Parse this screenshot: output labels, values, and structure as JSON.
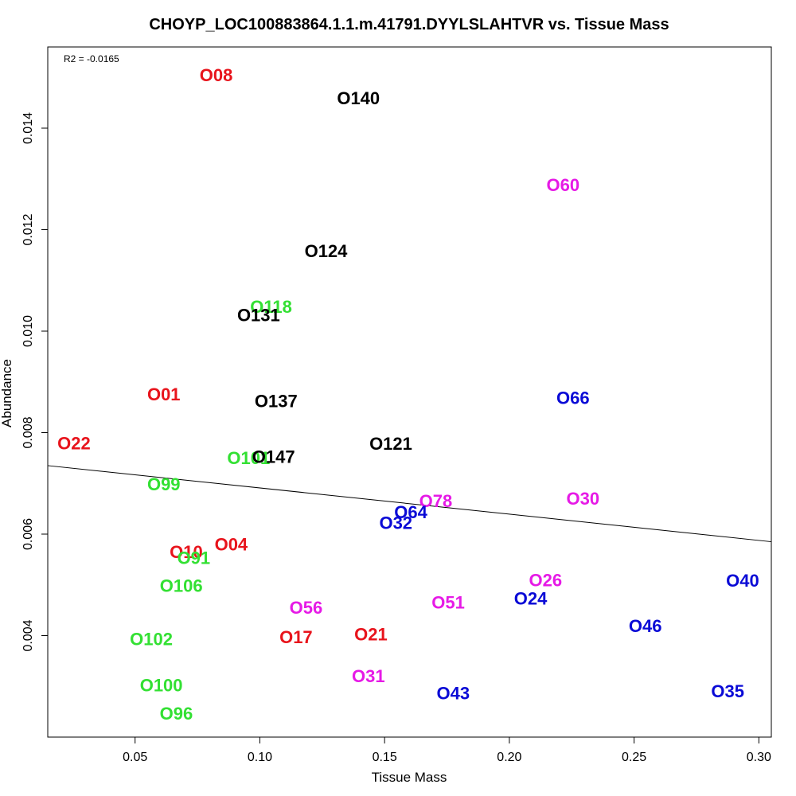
{
  "chart_data": {
    "type": "scatter",
    "title": "CHOYP_LOC100883864.1.1.m.41791.DYYLSLAHTVR vs. Tissue Mass",
    "xlabel": "Tissue Mass",
    "ylabel": "Abundance",
    "xlim": [
      0.015,
      0.305
    ],
    "ylim": [
      0.002,
      0.0156
    ],
    "x_ticks": [
      0.05,
      0.1,
      0.15,
      0.2,
      0.25,
      0.3
    ],
    "x_tick_labels": [
      "0.05",
      "0.10",
      "0.15",
      "0.20",
      "0.25",
      "0.30"
    ],
    "y_ticks": [
      0.004,
      0.006,
      0.008,
      0.01,
      0.012,
      0.014
    ],
    "y_tick_labels": [
      "0.004",
      "0.006",
      "0.008",
      "0.010",
      "0.012",
      "0.014"
    ],
    "annotation": "R2 = -0.0165",
    "fit_line": {
      "x": [
        0.015,
        0.305
      ],
      "y": [
        0.00735,
        0.00585
      ]
    },
    "colors": {
      "red": "#e8141c",
      "black": "#000000",
      "green": "#33e033",
      "blue": "#0a0ad6",
      "magenta": "#e61ae6"
    },
    "points": [
      {
        "label": "O08",
        "x": 0.0825,
        "y": 0.01504,
        "color": "red"
      },
      {
        "label": "O140",
        "x": 0.1395,
        "y": 0.01459,
        "color": "black"
      },
      {
        "label": "O60",
        "x": 0.2215,
        "y": 0.01288,
        "color": "magenta"
      },
      {
        "label": "O124",
        "x": 0.1265,
        "y": 0.01158,
        "color": "black"
      },
      {
        "label": "O118",
        "x": 0.1045,
        "y": 0.01048,
        "color": "green"
      },
      {
        "label": "O131",
        "x": 0.0995,
        "y": 0.01031,
        "color": "black"
      },
      {
        "label": "O01",
        "x": 0.0615,
        "y": 0.00875,
        "color": "red"
      },
      {
        "label": "O137",
        "x": 0.1065,
        "y": 0.00862,
        "color": "black"
      },
      {
        "label": "O66",
        "x": 0.2255,
        "y": 0.00868,
        "color": "blue"
      },
      {
        "label": "O22",
        "x": 0.0255,
        "y": 0.00779,
        "color": "red"
      },
      {
        "label": "O121",
        "x": 0.1525,
        "y": 0.00778,
        "color": "black"
      },
      {
        "label": "O101",
        "x": 0.0955,
        "y": 0.0075,
        "color": "green"
      },
      {
        "label": "O147",
        "x": 0.1055,
        "y": 0.00752,
        "color": "black"
      },
      {
        "label": "O99",
        "x": 0.0615,
        "y": 0.00698,
        "color": "green"
      },
      {
        "label": "O78",
        "x": 0.1705,
        "y": 0.00665,
        "color": "magenta"
      },
      {
        "label": "O30",
        "x": 0.2295,
        "y": 0.0067,
        "color": "magenta"
      },
      {
        "label": "O64",
        "x": 0.1605,
        "y": 0.00643,
        "color": "blue"
      },
      {
        "label": "O32",
        "x": 0.1545,
        "y": 0.00622,
        "color": "blue"
      },
      {
        "label": "O04",
        "x": 0.0885,
        "y": 0.0058,
        "color": "red"
      },
      {
        "label": "O10",
        "x": 0.0705,
        "y": 0.00565,
        "color": "red"
      },
      {
        "label": "O91",
        "x": 0.0735,
        "y": 0.00553,
        "color": "green"
      },
      {
        "label": "O26",
        "x": 0.2145,
        "y": 0.00509,
        "color": "magenta"
      },
      {
        "label": "O40",
        "x": 0.2935,
        "y": 0.00508,
        "color": "blue"
      },
      {
        "label": "O106",
        "x": 0.0685,
        "y": 0.00498,
        "color": "green"
      },
      {
        "label": "O24",
        "x": 0.2085,
        "y": 0.00473,
        "color": "blue"
      },
      {
        "label": "O51",
        "x": 0.1755,
        "y": 0.00465,
        "color": "magenta"
      },
      {
        "label": "O56",
        "x": 0.1185,
        "y": 0.00455,
        "color": "magenta"
      },
      {
        "label": "O46",
        "x": 0.2545,
        "y": 0.00419,
        "color": "blue"
      },
      {
        "label": "O21",
        "x": 0.1445,
        "y": 0.00402,
        "color": "red"
      },
      {
        "label": "O17",
        "x": 0.1145,
        "y": 0.00397,
        "color": "red"
      },
      {
        "label": "O102",
        "x": 0.0565,
        "y": 0.00393,
        "color": "green"
      },
      {
        "label": "O31",
        "x": 0.1435,
        "y": 0.0032,
        "color": "magenta"
      },
      {
        "label": "O100",
        "x": 0.0605,
        "y": 0.00302,
        "color": "green"
      },
      {
        "label": "O35",
        "x": 0.2875,
        "y": 0.0029,
        "color": "blue"
      },
      {
        "label": "O43",
        "x": 0.1775,
        "y": 0.00286,
        "color": "blue"
      },
      {
        "label": "O96",
        "x": 0.0665,
        "y": 0.00246,
        "color": "green"
      }
    ]
  }
}
